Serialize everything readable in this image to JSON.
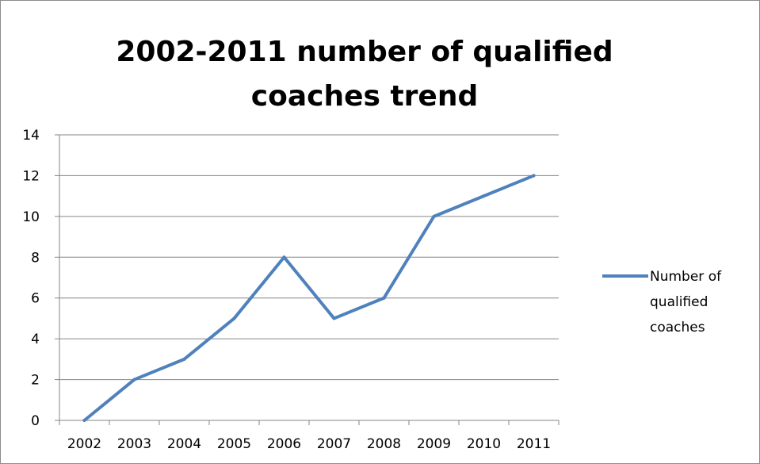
{
  "chart_data": {
    "type": "line",
    "title": "2002-2011 number of qualified coaches trend",
    "categories": [
      "2002",
      "2003",
      "2004",
      "2005",
      "2006",
      "2007",
      "2008",
      "2009",
      "2010",
      "2011"
    ],
    "series": [
      {
        "name": "Number of qualified coaches",
        "values": [
          0,
          2,
          3,
          5,
          8,
          5,
          6,
          10,
          11,
          12
        ],
        "color": "#4F81BD"
      }
    ],
    "ylim": [
      0,
      14
    ],
    "yticks": [
      "0",
      "2",
      "4",
      "6",
      "8",
      "10",
      "12",
      "14"
    ],
    "grid": true,
    "legend_position": "right"
  }
}
